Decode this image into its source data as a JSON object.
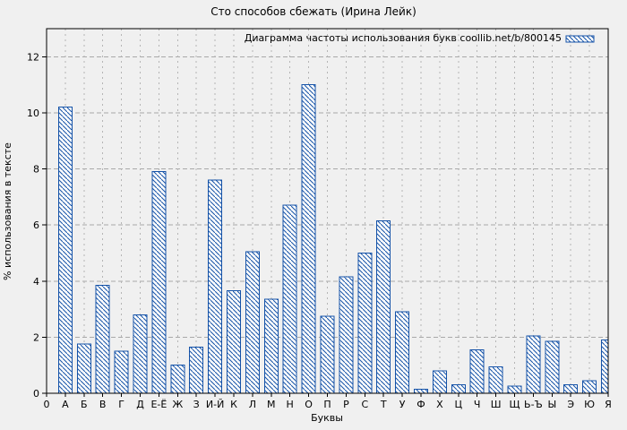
{
  "chart_data": {
    "type": "bar",
    "title": "Сто способов сбежать (Ирина Лейк)",
    "legend_label": "Диаграмма частоты использования букв coollib.net/b/800145",
    "legend_position": "top-right",
    "xlabel": "Буквы",
    "ylabel": "% использования в тексте",
    "x_origin_label": "0",
    "categories": [
      "А",
      "Б",
      "В",
      "Г",
      "Д",
      "Е-Ё",
      "Ж",
      "З",
      "И-Й",
      "К",
      "Л",
      "М",
      "Н",
      "О",
      "П",
      "Р",
      "С",
      "Т",
      "У",
      "Ф",
      "Х",
      "Ц",
      "Ч",
      "Ш",
      "Щ",
      "Ь-Ъ",
      "Ы",
      "Э",
      "Ю",
      "Я"
    ],
    "values": [
      10.2,
      1.75,
      3.85,
      1.5,
      2.8,
      7.9,
      1.0,
      1.65,
      7.6,
      3.65,
      5.05,
      3.35,
      6.7,
      11.0,
      2.75,
      4.15,
      5.0,
      6.15,
      2.9,
      0.15,
      0.8,
      0.3,
      1.55,
      0.95,
      0.25,
      2.05,
      1.85,
      0.3,
      0.45,
      1.9
    ],
    "yticks": [
      0,
      2,
      4,
      6,
      8,
      10,
      12
    ],
    "ylim": [
      0,
      13
    ],
    "grid": true,
    "colors": {
      "bar_stroke": "#1452a8",
      "bar_fill": "#fcfcfc",
      "grid_h": "#a9a9a9",
      "grid_v": "#b5b5b5",
      "axis": "#000000",
      "background": "#f0f0f0",
      "text": "#000000"
    }
  }
}
